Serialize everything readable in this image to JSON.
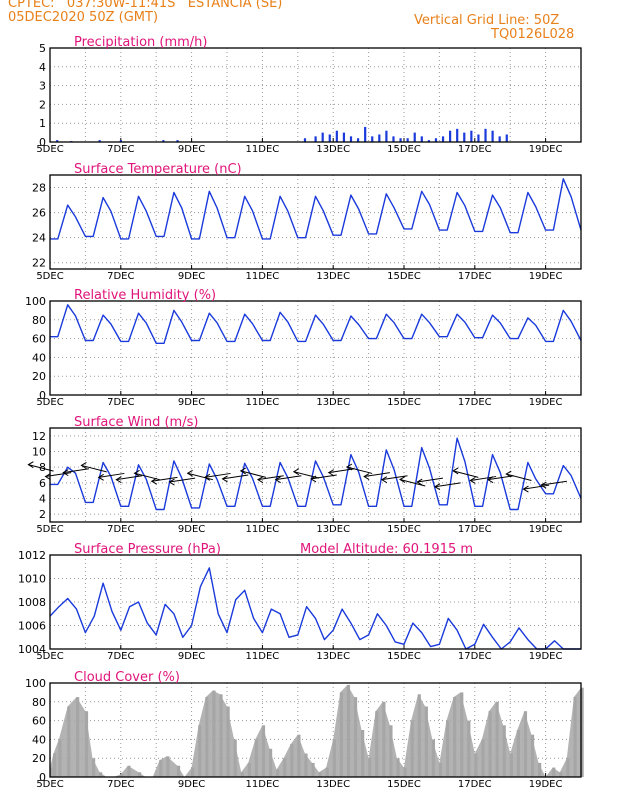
{
  "header": {
    "line1": "CPTEC:   037:30W-11:41S   ESTANCIA (SE)",
    "line2": "05DEC2020 50Z (GMT)",
    "grid_note": "Vertical Grid Line: 50Z",
    "code": "TQ0126L028"
  },
  "colors": {
    "header": "#e8801a",
    "title": "#e0147a",
    "series": "#1a3adb",
    "cloud": "#a6a6a6",
    "grid": "#9a9a9a",
    "wind_arrow": "#000000"
  },
  "x_axis": {
    "tick_labels": [
      "5DEC",
      "7DEC",
      "9DEC",
      "11DEC",
      "13DEC",
      "15DEC",
      "17DEC",
      "19DEC"
    ],
    "range_days": [
      5,
      20
    ]
  },
  "chart_data": [
    {
      "id": "precip",
      "type": "bar",
      "title": "Precipitation (mm/h)",
      "ylim": [
        0,
        5
      ],
      "yticks": [
        0,
        1,
        2,
        3,
        4,
        5
      ],
      "x": [
        5.2,
        5.6,
        6.4,
        7.0,
        8.2,
        8.6,
        12.2,
        12.5,
        12.7,
        12.9,
        13.1,
        13.3,
        13.5,
        13.7,
        13.9,
        14.1,
        14.3,
        14.5,
        14.7,
        14.9,
        15.1,
        15.3,
        15.5,
        15.7,
        15.9,
        16.1,
        16.3,
        16.5,
        16.7,
        16.9,
        17.1,
        17.3,
        17.5,
        17.7,
        17.9
      ],
      "values": [
        0.1,
        0.05,
        0.1,
        0.1,
        0.1,
        0.1,
        0.2,
        0.3,
        0.5,
        0.4,
        0.6,
        0.5,
        0.3,
        0.2,
        0.8,
        0.3,
        0.4,
        0.6,
        0.3,
        0.2,
        0.2,
        0.5,
        0.3,
        0.1,
        0.2,
        0.3,
        0.6,
        0.7,
        0.5,
        0.6,
        0.4,
        0.7,
        0.6,
        0.3,
        0.4
      ]
    },
    {
      "id": "temp",
      "type": "line",
      "title": "Surface Temperature (nC)",
      "ylim": [
        21.5,
        29
      ],
      "yticks": [
        22,
        24,
        26,
        28
      ],
      "diurnal": {
        "base": [
          23.9,
          24.1,
          23.9,
          24.1,
          23.9,
          24.0,
          23.9,
          24.0,
          24.2,
          24.3,
          24.7,
          24.6,
          24.5,
          24.4,
          24.6,
          24.6
        ],
        "peak": [
          26.6,
          27.2,
          27.3,
          27.6,
          27.7,
          27.3,
          27.3,
          27.3,
          27.4,
          27.5,
          27.7,
          27.6,
          27.4,
          27.6,
          28.7,
          27.6
        ]
      },
      "x": [],
      "values": []
    },
    {
      "id": "rh",
      "type": "line",
      "title": "Relative Humidity (%)",
      "ylim": [
        0,
        100
      ],
      "yticks": [
        0,
        20,
        40,
        60,
        80,
        100
      ],
      "diurnal": {
        "base": [
          62,
          58,
          57,
          55,
          58,
          57,
          58,
          57,
          58,
          60,
          60,
          62,
          61,
          60,
          57,
          58
        ],
        "peak": [
          96,
          85,
          87,
          90,
          87,
          86,
          88,
          85,
          84,
          86,
          86,
          86,
          85,
          82,
          90,
          80
        ]
      },
      "x": [],
      "values": []
    },
    {
      "id": "wind",
      "type": "line",
      "title": "Surface Wind (m/s)",
      "ylim": [
        1,
        13
      ],
      "yticks": [
        2,
        4,
        6,
        8,
        10,
        12
      ],
      "diurnal": {
        "base": [
          5.8,
          3.5,
          3.0,
          2.6,
          2.8,
          3.0,
          3.0,
          3.0,
          3.2,
          3.0,
          3.0,
          3.2,
          3.0,
          2.6,
          4.6,
          4.0
        ],
        "peak": [
          8.0,
          8.6,
          8.3,
          8.8,
          8.4,
          8.5,
          8.6,
          8.8,
          9.6,
          10.2,
          10.5,
          11.7,
          9.6,
          8.6,
          8.2,
          8.1
        ]
      },
      "vectors": {
        "x": [
          5.1,
          5.6,
          6.1,
          6.6,
          7.1,
          7.6,
          8.1,
          8.6,
          9.1,
          9.6,
          10.1,
          10.6,
          11.1,
          11.6,
          12.1,
          12.6,
          13.1,
          13.6,
          14.1,
          14.6,
          15.1,
          15.6,
          16.1,
          16.6,
          17.1,
          17.6,
          18.1,
          18.6,
          19.1,
          19.6
        ],
        "y": [
          7.5,
          7.3,
          7.8,
          7.4,
          7.2,
          6.9,
          6.4,
          6.7,
          6.6,
          6.4,
          7.2,
          7.0,
          6.7,
          6.9,
          6.9,
          6.6,
          7.0,
          7.8,
          7.2,
          7.3,
          6.9,
          5.6,
          6.6,
          6.0,
          6.7,
          6.8,
          6.9,
          6.3,
          5.7,
          6.2
        ]
      },
      "x": [],
      "values": []
    },
    {
      "id": "pressure",
      "type": "line",
      "title": "Surface Pressure (hPa)",
      "annotation": "Model Altitude: 60.1915 m",
      "ylim": [
        1004,
        1012
      ],
      "yticks": [
        1004,
        1006,
        1008,
        1010,
        1012
      ],
      "x": [
        5.0,
        5.25,
        5.5,
        5.75,
        6.0,
        6.25,
        6.5,
        6.75,
        7.0,
        7.25,
        7.5,
        7.75,
        8.0,
        8.25,
        8.5,
        8.75,
        9.0,
        9.25,
        9.5,
        9.75,
        10.0,
        10.25,
        10.5,
        10.75,
        11.0,
        11.25,
        11.5,
        11.75,
        12.0,
        12.25,
        12.5,
        12.75,
        13.0,
        13.25,
        13.5,
        13.75,
        14.0,
        14.25,
        14.5,
        14.75,
        15.0,
        15.25,
        15.5,
        15.75,
        16.0,
        16.25,
        16.5,
        16.75,
        17.0,
        17.25,
        17.5,
        17.75,
        18.0,
        18.25,
        18.5,
        18.75,
        19.0,
        19.25,
        19.5,
        19.75,
        20.0
      ],
      "values": [
        1006.8,
        1007.6,
        1008.3,
        1007.4,
        1005.4,
        1006.8,
        1009.6,
        1007.2,
        1005.6,
        1007.6,
        1008.0,
        1006.2,
        1005.2,
        1007.8,
        1007.0,
        1005.0,
        1006.0,
        1009.3,
        1010.9,
        1007.0,
        1005.4,
        1008.2,
        1009.0,
        1006.6,
        1005.4,
        1007.4,
        1007.0,
        1005.0,
        1005.2,
        1007.6,
        1006.6,
        1004.8,
        1005.6,
        1007.4,
        1006.2,
        1004.8,
        1005.2,
        1007.0,
        1006.0,
        1004.6,
        1004.4,
        1006.2,
        1005.4,
        1004.2,
        1004.4,
        1006.6,
        1005.6,
        1004.0,
        1004.4,
        1006.1,
        1005.0,
        1003.8,
        1004.6,
        1005.8,
        1004.8,
        1003.6,
        1003.9,
        1004.7,
        1003.8,
        1003.6,
        1004.0
      ]
    },
    {
      "id": "cloud",
      "type": "area",
      "title": "Cloud Cover (%)",
      "ylim": [
        0,
        100
      ],
      "yticks": [
        0,
        20,
        40,
        60,
        80,
        100
      ],
      "x": [
        5.0,
        5.1,
        5.25,
        5.5,
        5.75,
        6.0,
        6.2,
        6.4,
        6.6,
        6.8,
        7.0,
        7.2,
        7.5,
        7.7,
        7.9,
        8.1,
        8.3,
        8.6,
        8.8,
        9.0,
        9.2,
        9.4,
        9.6,
        9.8,
        10.0,
        10.2,
        10.4,
        10.6,
        10.8,
        11.0,
        11.2,
        11.4,
        11.6,
        11.8,
        12.0,
        12.2,
        12.4,
        12.6,
        12.8,
        13.0,
        13.2,
        13.4,
        13.6,
        13.8,
        14.0,
        14.2,
        14.4,
        14.6,
        14.8,
        15.0,
        15.2,
        15.4,
        15.6,
        15.8,
        16.0,
        16.2,
        16.4,
        16.6,
        16.8,
        17.0,
        17.2,
        17.4,
        17.6,
        17.8,
        18.0,
        18.2,
        18.4,
        18.6,
        18.8,
        19.0,
        19.2,
        19.4,
        19.6,
        19.8,
        20.0
      ],
      "values": [
        10,
        25,
        40,
        75,
        85,
        70,
        20,
        5,
        0,
        0,
        3,
        12,
        5,
        0,
        0,
        18,
        22,
        12,
        0,
        10,
        55,
        85,
        92,
        88,
        75,
        40,
        5,
        15,
        40,
        55,
        30,
        8,
        20,
        35,
        45,
        25,
        15,
        5,
        10,
        40,
        90,
        98,
        85,
        50,
        20,
        70,
        80,
        55,
        20,
        10,
        60,
        88,
        75,
        40,
        15,
        60,
        85,
        90,
        60,
        25,
        40,
        70,
        80,
        55,
        25,
        50,
        70,
        45,
        15,
        0,
        10,
        5,
        20,
        85,
        95
      ]
    }
  ]
}
